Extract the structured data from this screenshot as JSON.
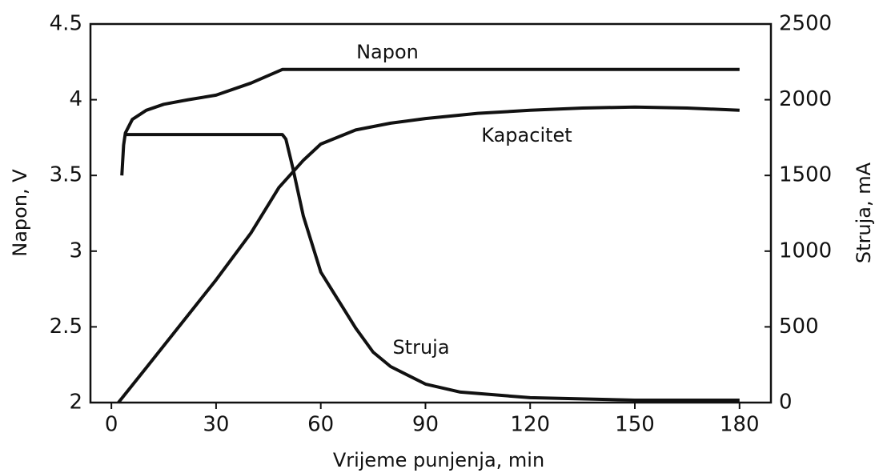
{
  "chart_data": {
    "type": "line",
    "xlabel": "Vrijeme punjenja, min",
    "ylabel": "Napon, V",
    "y2label": "Struja, mA",
    "xlim": [
      -6,
      189
    ],
    "xticks": [
      0,
      30,
      60,
      90,
      120,
      150,
      180
    ],
    "ylim": [
      2,
      4.5
    ],
    "yticks": [
      2,
      2.5,
      3,
      3.5,
      4,
      4.5
    ],
    "y2lim": [
      0,
      2500
    ],
    "y2ticks": [
      0,
      500,
      1000,
      1500,
      2000,
      2500
    ],
    "grid": false,
    "series": [
      {
        "name": "Napon",
        "color": "#111111",
        "axis": "y",
        "x": [
          3,
          3.5,
          4,
          6,
          10,
          15,
          22,
          30,
          40,
          49,
          50,
          180
        ],
        "values": [
          3.5,
          3.7,
          3.78,
          3.87,
          3.93,
          3.97,
          4.0,
          4.03,
          4.11,
          4.2,
          4.2,
          4.2
        ]
      },
      {
        "name": "Kapacitet",
        "color": "#111111",
        "axis": "y2",
        "x": [
          2,
          10,
          20,
          30,
          40,
          48,
          55,
          60,
          70,
          80,
          90,
          105,
          120,
          135,
          150,
          165,
          180
        ],
        "values": [
          0,
          230,
          520,
          810,
          1120,
          1420,
          1600,
          1707,
          1800,
          1845,
          1876,
          1910,
          1930,
          1945,
          1952,
          1945,
          1930
        ]
      },
      {
        "name": "Struja",
        "color": "#111111",
        "axis": "y2",
        "x": [
          4,
          49,
          50,
          52,
          55,
          60,
          65,
          70,
          75,
          80,
          90,
          100,
          120,
          150,
          180
        ],
        "values": [
          1770,
          1770,
          1740,
          1549,
          1232,
          862,
          677,
          492,
          333,
          238,
          122,
          69,
          32,
          16,
          16
        ]
      }
    ]
  }
}
